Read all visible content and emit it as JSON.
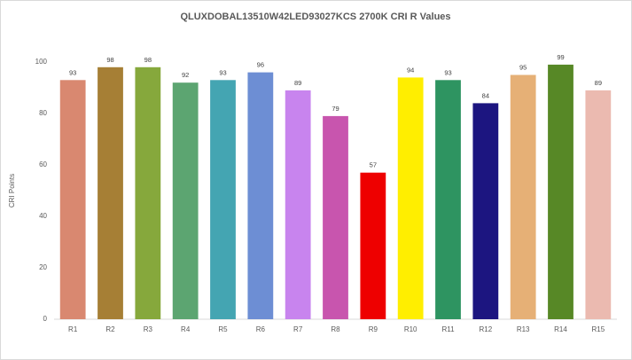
{
  "chart_data": {
    "type": "bar",
    "title": "QLUXDOBAL13510W42LED93027KCS 2700K CRI R Values",
    "y_label": "CRI Points",
    "categories": [
      "R1",
      "R2",
      "R3",
      "R4",
      "R5",
      "R6",
      "R7",
      "R8",
      "R9",
      "R10",
      "R11",
      "R12",
      "R13",
      "R14",
      "R15"
    ],
    "values": [
      93,
      98,
      98,
      92,
      93,
      96,
      89,
      79,
      57,
      94,
      93,
      84,
      95,
      99,
      89
    ],
    "colors": [
      "#d98870",
      "#a67f35",
      "#86a83c",
      "#5ca571",
      "#44a5b2",
      "#6d8ed4",
      "#c884ee",
      "#c855ae",
      "#ee0000",
      "#ffee00",
      "#2e9461",
      "#1c1580",
      "#e6b076",
      "#578826",
      "#ebbab0"
    ],
    "ylim": [
      0,
      100
    ],
    "yticks": [
      0,
      20,
      40,
      60,
      80,
      100
    ],
    "grid": false
  }
}
